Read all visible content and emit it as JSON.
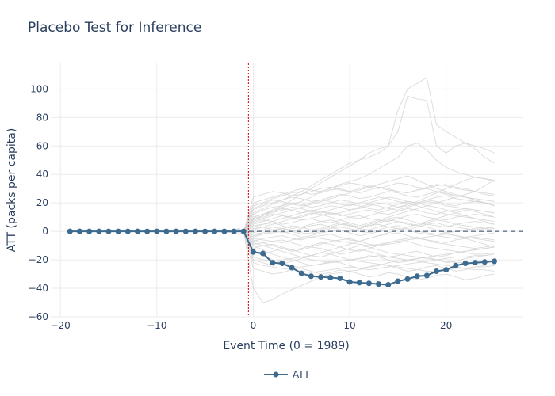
{
  "chart_data": {
    "type": "line",
    "title": "Placebo Test for Inference",
    "xlabel": "Event Time (0 = 1989)",
    "ylabel": "ATT (packs per capita)",
    "xlim": [
      -21,
      28
    ],
    "ylim": [
      -60,
      118
    ],
    "xticks": [
      -20,
      -10,
      0,
      10,
      20
    ],
    "yticks": [
      -60,
      -40,
      -20,
      0,
      20,
      40,
      60,
      80,
      100
    ],
    "xtick_labels": [
      "−20",
      "−10",
      "0",
      "10",
      "20"
    ],
    "ytick_labels": [
      "−60",
      "−40",
      "−20",
      "0",
      "20",
      "40",
      "60",
      "80",
      "100"
    ],
    "grid": true,
    "legend_position": "bottom-center",
    "treatment_line_x": -0.5,
    "zero_line_y": 0,
    "colors": {
      "att": "#3d6a8f",
      "placebo": "#d3d3d3",
      "treatment_line": "#cc0000",
      "zero_line": "#2a3f5f",
      "grid": "#ebebeb"
    },
    "series": [
      {
        "name": "ATT",
        "x": [
          -19,
          -18,
          -17,
          -16,
          -15,
          -14,
          -13,
          -12,
          -11,
          -10,
          -9,
          -8,
          -7,
          -6,
          -5,
          -4,
          -3,
          -2,
          -1,
          0,
          1,
          2,
          3,
          4,
          5,
          6,
          7,
          8,
          9,
          10,
          11,
          12,
          13,
          14,
          15,
          16,
          17,
          18,
          19,
          20,
          21,
          22,
          23,
          24,
          25
        ],
        "y": [
          0,
          0,
          0,
          0,
          0,
          0,
          0,
          0,
          0,
          0,
          0,
          0,
          0,
          0,
          0,
          0,
          0,
          0,
          0,
          -14.5,
          -15.5,
          -22,
          -22.5,
          -25.5,
          -29.5,
          -31.5,
          -32,
          -32.5,
          -33,
          -35.5,
          -36,
          -36.5,
          -37,
          -37.5,
          -35,
          -33.5,
          -31.5,
          -31,
          -28,
          -27,
          -24,
          -22.5,
          -22,
          -21.5,
          -21
        ]
      }
    ],
    "placebo_x": [
      -1,
      0,
      1,
      2,
      3,
      4,
      5,
      6,
      7,
      8,
      9,
      10,
      11,
      12,
      13,
      14,
      15,
      16,
      17,
      18,
      19,
      20,
      21,
      22,
      23,
      24,
      25
    ],
    "placebo_y": [
      [
        0,
        -40,
        -50,
        -48,
        -44,
        -41,
        -38,
        -35,
        -32,
        -30,
        -29,
        -28,
        -27,
        -25,
        -24,
        -22,
        -21,
        -20,
        -19,
        -18,
        -17,
        -16,
        -15,
        -14,
        -13,
        -12,
        -11
      ],
      [
        0,
        -26,
        -28,
        -30,
        -29,
        -27,
        -25,
        -24,
        -23,
        -22,
        -21,
        -20,
        -21,
        -22,
        -23,
        -24,
        -25,
        -26,
        -27,
        -28,
        -28,
        -27,
        -26,
        -26,
        -25,
        -25,
        -24
      ],
      [
        0,
        -22,
        -24,
        -25,
        -26,
        -27,
        -28,
        -29,
        -28,
        -27,
        -26,
        -25,
        -26,
        -27,
        -26,
        -25,
        -24,
        -23,
        -22,
        -21,
        -20,
        -19,
        -18,
        -18,
        -17,
        -17,
        -16
      ],
      [
        0,
        -18,
        -20,
        -21,
        -20,
        -19,
        -18,
        -20,
        -21,
        -22,
        -21,
        -20,
        -19,
        -18,
        -17,
        -18,
        -19,
        -20,
        -21,
        -22,
        -23,
        -24,
        -25,
        -26,
        -27,
        -27,
        -28
      ],
      [
        0,
        -15,
        -16,
        -14,
        -12,
        -13,
        -15,
        -17,
        -18,
        -16,
        -14,
        -12,
        -10,
        -11,
        -13,
        -15,
        -16,
        -17,
        -18,
        -19,
        -20,
        -21,
        -22,
        -22,
        -23,
        -22,
        -21
      ],
      [
        0,
        -12,
        -10,
        -9,
        -11,
        -13,
        -12,
        -10,
        -8,
        -9,
        -11,
        -13,
        -14,
        -12,
        -10,
        -9,
        -8,
        -7,
        -9,
        -11,
        -12,
        -13,
        -14,
        -15,
        -16,
        -16,
        -15
      ],
      [
        0,
        -9,
        -8,
        -7,
        -6,
        -8,
        -10,
        -11,
        -9,
        -7,
        -6,
        -5,
        -7,
        -9,
        -10,
        -8,
        -6,
        -5,
        -4,
        -6,
        -8,
        -9,
        -10,
        -11,
        -12,
        -11,
        -10
      ],
      [
        0,
        -7,
        -5,
        -4,
        -3,
        -5,
        -6,
        -4,
        -3,
        -2,
        -4,
        -6,
        -7,
        -5,
        -3,
        -2,
        -1,
        -3,
        -5,
        -6,
        -7,
        -8,
        -6,
        -5,
        -4,
        -5,
        -6
      ],
      [
        0,
        -5,
        -6,
        -7,
        -8,
        -6,
        -5,
        -4,
        -5,
        -6,
        -7,
        -8,
        -9,
        -10,
        -9,
        -8,
        -7,
        -6,
        -5,
        -4,
        -3,
        -2,
        -3,
        -4,
        -5,
        -6,
        -7
      ],
      [
        0,
        -3,
        -2,
        -1,
        0,
        -2,
        -4,
        -3,
        -1,
        0,
        1,
        -1,
        -3,
        -2,
        0,
        1,
        2,
        1,
        -1,
        -2,
        -3,
        -4,
        -5,
        -4,
        -3,
        -2,
        -1
      ],
      [
        0,
        -2,
        -1,
        1,
        2,
        1,
        -1,
        -2,
        0,
        2,
        3,
        2,
        0,
        -1,
        1,
        3,
        4,
        2,
        0,
        -1,
        -2,
        -1,
        0,
        1,
        2,
        3,
        2
      ],
      [
        0,
        2,
        3,
        1,
        -1,
        0,
        2,
        4,
        5,
        3,
        1,
        0,
        2,
        4,
        5,
        3,
        2,
        1,
        3,
        5,
        6,
        4,
        3,
        2,
        1,
        2,
        3
      ],
      [
        0,
        4,
        5,
        6,
        4,
        2,
        3,
        5,
        7,
        8,
        6,
        4,
        3,
        5,
        7,
        9,
        10,
        8,
        6,
        5,
        4,
        3,
        5,
        6,
        7,
        6,
        5
      ],
      [
        0,
        6,
        8,
        7,
        5,
        6,
        8,
        9,
        7,
        6,
        8,
        10,
        11,
        9,
        8,
        7,
        9,
        11,
        12,
        10,
        9,
        8,
        10,
        11,
        12,
        11,
        10
      ],
      [
        0,
        8,
        10,
        12,
        11,
        9,
        10,
        12,
        14,
        13,
        11,
        12,
        14,
        15,
        13,
        12,
        14,
        16,
        15,
        13,
        12,
        14,
        15,
        16,
        15,
        14,
        13
      ],
      [
        0,
        10,
        12,
        14,
        16,
        15,
        13,
        14,
        16,
        18,
        17,
        15,
        16,
        18,
        20,
        19,
        17,
        18,
        20,
        22,
        21,
        19,
        18,
        20,
        21,
        20,
        19
      ],
      [
        0,
        12,
        15,
        17,
        18,
        20,
        19,
        17,
        18,
        20,
        22,
        21,
        19,
        20,
        22,
        24,
        23,
        21,
        20,
        22,
        24,
        25,
        23,
        22,
        21,
        20,
        19
      ],
      [
        0,
        15,
        18,
        20,
        22,
        24,
        23,
        21,
        22,
        24,
        26,
        25,
        23,
        24,
        26,
        28,
        27,
        25,
        24,
        26,
        28,
        27,
        25,
        24,
        23,
        22,
        21
      ],
      [
        0,
        18,
        20,
        23,
        25,
        27,
        28,
        26,
        27,
        29,
        30,
        28,
        27,
        29,
        31,
        30,
        28,
        27,
        29,
        31,
        33,
        32,
        30,
        29,
        28,
        27,
        26
      ],
      [
        0,
        20,
        22,
        24,
        26,
        28,
        30,
        29,
        28,
        30,
        32,
        34,
        33,
        31,
        30,
        32,
        34,
        33,
        31,
        30,
        32,
        33,
        31,
        30,
        28,
        26,
        25
      ],
      [
        0,
        24,
        26,
        28,
        27,
        25,
        26,
        28,
        30,
        31,
        29,
        28,
        30,
        32,
        31,
        29,
        28,
        27,
        29,
        30,
        28,
        26,
        25,
        24,
        22,
        20,
        18
      ],
      [
        0,
        13,
        16,
        19,
        22,
        25,
        28,
        32,
        36,
        40,
        44,
        48,
        50,
        52,
        55,
        60,
        70,
        95,
        93,
        92,
        60,
        55,
        60,
        62,
        60,
        58,
        55
      ],
      [
        0,
        10,
        12,
        15,
        18,
        22,
        26,
        30,
        34,
        38,
        42,
        46,
        50,
        55,
        58,
        60,
        85,
        100,
        104,
        108,
        75,
        70,
        66,
        62,
        58,
        52,
        48
      ],
      [
        0,
        8,
        11,
        14,
        17,
        19,
        21,
        24,
        28,
        30,
        33,
        35,
        37,
        40,
        44,
        48,
        52,
        60,
        62,
        57,
        50,
        45,
        42,
        40,
        38,
        37,
        36
      ],
      [
        0,
        5,
        7,
        9,
        11,
        10,
        8,
        9,
        11,
        13,
        12,
        10,
        9,
        11,
        13,
        15,
        17,
        19,
        21,
        24,
        27,
        30,
        33,
        36,
        38,
        37,
        35
      ],
      [
        0,
        3,
        5,
        7,
        9,
        11,
        13,
        15,
        14,
        12,
        13,
        15,
        17,
        19,
        18,
        16,
        15,
        17,
        19,
        21,
        20,
        18,
        17,
        16,
        15,
        14,
        13
      ],
      [
        0,
        -4,
        -2,
        0,
        2,
        4,
        3,
        1,
        2,
        4,
        6,
        5,
        3,
        4,
        6,
        8,
        7,
        5,
        4,
        6,
        8,
        7,
        5,
        4,
        3,
        2,
        1
      ],
      [
        0,
        -6,
        -8,
        -10,
        -12,
        -14,
        -13,
        -11,
        -12,
        -14,
        -16,
        -15,
        -13,
        -14,
        -16,
        -18,
        -17,
        -15,
        -14,
        -16,
        -18,
        -17,
        -15,
        -14,
        -13,
        -12,
        -11
      ],
      [
        0,
        -8,
        -10,
        -12,
        -14,
        -16,
        -18,
        -17,
        -15,
        -16,
        -18,
        -20,
        -19,
        -17,
        -18,
        -20,
        -22,
        -21,
        -19,
        -18,
        -20,
        -22,
        -21,
        -19,
        -18,
        -17,
        -16
      ],
      [
        0,
        -10,
        -13,
        -16,
        -18,
        -20,
        -22,
        -24,
        -23,
        -21,
        -22,
        -24,
        -26,
        -25,
        -23,
        -24,
        -26,
        -28,
        -27,
        -25,
        -24,
        -26,
        -28,
        -27,
        -25,
        -24,
        -23
      ],
      [
        0,
        -14,
        -17,
        -20,
        -22,
        -24,
        -26,
        -28,
        -30,
        -29,
        -27,
        -28,
        -30,
        -32,
        -31,
        -29,
        -30,
        -32,
        -34,
        -33,
        -31,
        -30,
        -32,
        -34,
        -33,
        -31,
        -30
      ],
      [
        0,
        7,
        9,
        11,
        13,
        15,
        17,
        19,
        21,
        23,
        25,
        27,
        29,
        31,
        33,
        35,
        37,
        39,
        36,
        33,
        30,
        28,
        26,
        24,
        22,
        20,
        18
      ],
      [
        0,
        1,
        3,
        5,
        7,
        9,
        11,
        13,
        12,
        10,
        8,
        6,
        4,
        6,
        8,
        10,
        12,
        14,
        16,
        18,
        20,
        22,
        24,
        26,
        28,
        32,
        36
      ],
      [
        0,
        9,
        11,
        13,
        15,
        17,
        16,
        14,
        13,
        15,
        17,
        19,
        18,
        16,
        15,
        17,
        19,
        21,
        20,
        18,
        17,
        15,
        13,
        11,
        9,
        7,
        5
      ],
      [
        0,
        -1,
        1,
        3,
        2,
        0,
        -2,
        -1,
        1,
        3,
        5,
        4,
        2,
        1,
        3,
        5,
        7,
        6,
        4,
        3,
        1,
        -1,
        -3,
        -5,
        -7,
        -9,
        -11
      ],
      [
        0,
        16,
        19,
        22,
        21,
        19,
        18,
        20,
        22,
        21,
        19,
        18,
        20,
        22,
        24,
        23,
        21,
        20,
        18,
        16,
        14,
        12,
        11,
        10,
        9,
        8,
        7
      ],
      [
        0,
        -20,
        -22,
        -24,
        -23,
        -21,
        -19,
        -17,
        -15,
        -13,
        -11,
        -9,
        -7,
        -5,
        -3,
        -1,
        1,
        3,
        5,
        7,
        9,
        11,
        13,
        15,
        14,
        12,
        10
      ]
    ],
    "placebo_pre": [
      [
        -2,
        1,
        -1
      ],
      [
        -2,
        2,
        -1
      ],
      [
        -2,
        -2,
        -1
      ],
      [
        -2,
        1.5,
        0
      ],
      [
        -3,
        2,
        0
      ],
      [
        -3,
        -2,
        0
      ]
    ]
  }
}
